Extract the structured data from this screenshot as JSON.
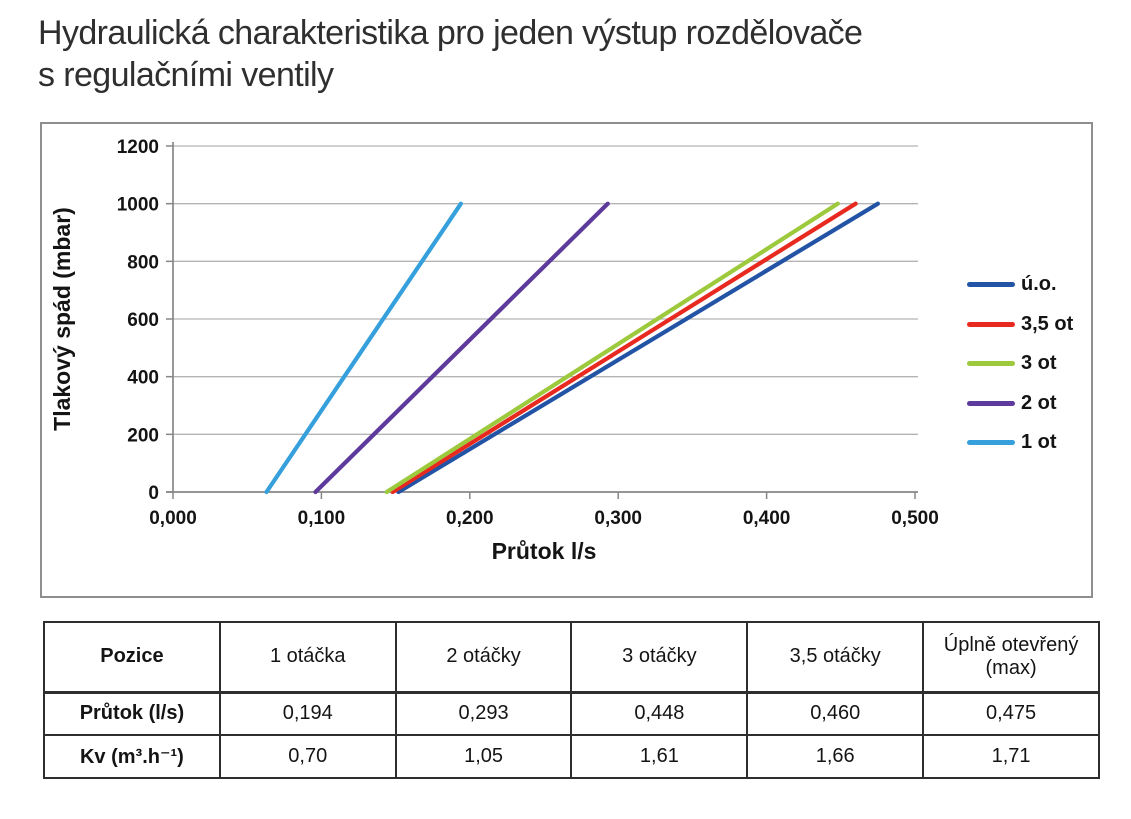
{
  "page": {
    "title_line1": "Hydraulická charakteristika pro jeden výstup rozdělovače",
    "title_line2": "s regulačními ventily"
  },
  "chart_data": {
    "type": "line",
    "title": "",
    "xlabel": "Průtok l/s",
    "ylabel": "Tlakový spád (mbar)",
    "xlim": [
      0,
      0.5
    ],
    "ylim": [
      0,
      1200
    ],
    "x_ticks": [
      0,
      0.1,
      0.2,
      0.3,
      0.4,
      0.5
    ],
    "x_tick_labels": [
      "0,000",
      "0,100",
      "0,200",
      "0,300",
      "0,400",
      "0,500"
    ],
    "y_ticks": [
      0,
      200,
      400,
      600,
      800,
      1000,
      1200
    ],
    "y_tick_labels": [
      "0",
      "200",
      "400",
      "600",
      "800",
      "1000",
      "1200"
    ],
    "grid": "horizontal",
    "legend_position": "right",
    "series": [
      {
        "name": "ú.o.",
        "color": "#2253a5",
        "points": [
          [
            0.152,
            0
          ],
          [
            0.475,
            1000
          ]
        ]
      },
      {
        "name": "3,5 ot",
        "color": "#e8291f",
        "points": [
          [
            0.148,
            0
          ],
          [
            0.46,
            1000
          ]
        ]
      },
      {
        "name": "3 ot",
        "color": "#9dc93d",
        "points": [
          [
            0.144,
            0
          ],
          [
            0.448,
            1000
          ]
        ]
      },
      {
        "name": "2 ot",
        "color": "#5e3a9c",
        "points": [
          [
            0.096,
            0
          ],
          [
            0.293,
            1000
          ]
        ]
      },
      {
        "name": "1 ot",
        "color": "#36a0dc",
        "points": [
          [
            0.063,
            0
          ],
          [
            0.194,
            1000
          ]
        ]
      }
    ],
    "colors": {
      "gridline": "#b4b4b4",
      "axis": "#878787",
      "text": "#141414"
    }
  },
  "table": {
    "header": [
      "Pozice",
      "1 otáčka",
      "2 otáčky",
      "3 otáčky",
      "3,5 otáčky",
      "Úplně otevřený (max)"
    ],
    "rows": [
      [
        "Průtok (l/s)",
        "0,194",
        "0,293",
        "0,448",
        "0,460",
        "0,475"
      ],
      [
        "Kv (m³.h⁻¹)",
        "0,70",
        "1,05",
        "1,61",
        "1,66",
        "1,71"
      ]
    ]
  }
}
